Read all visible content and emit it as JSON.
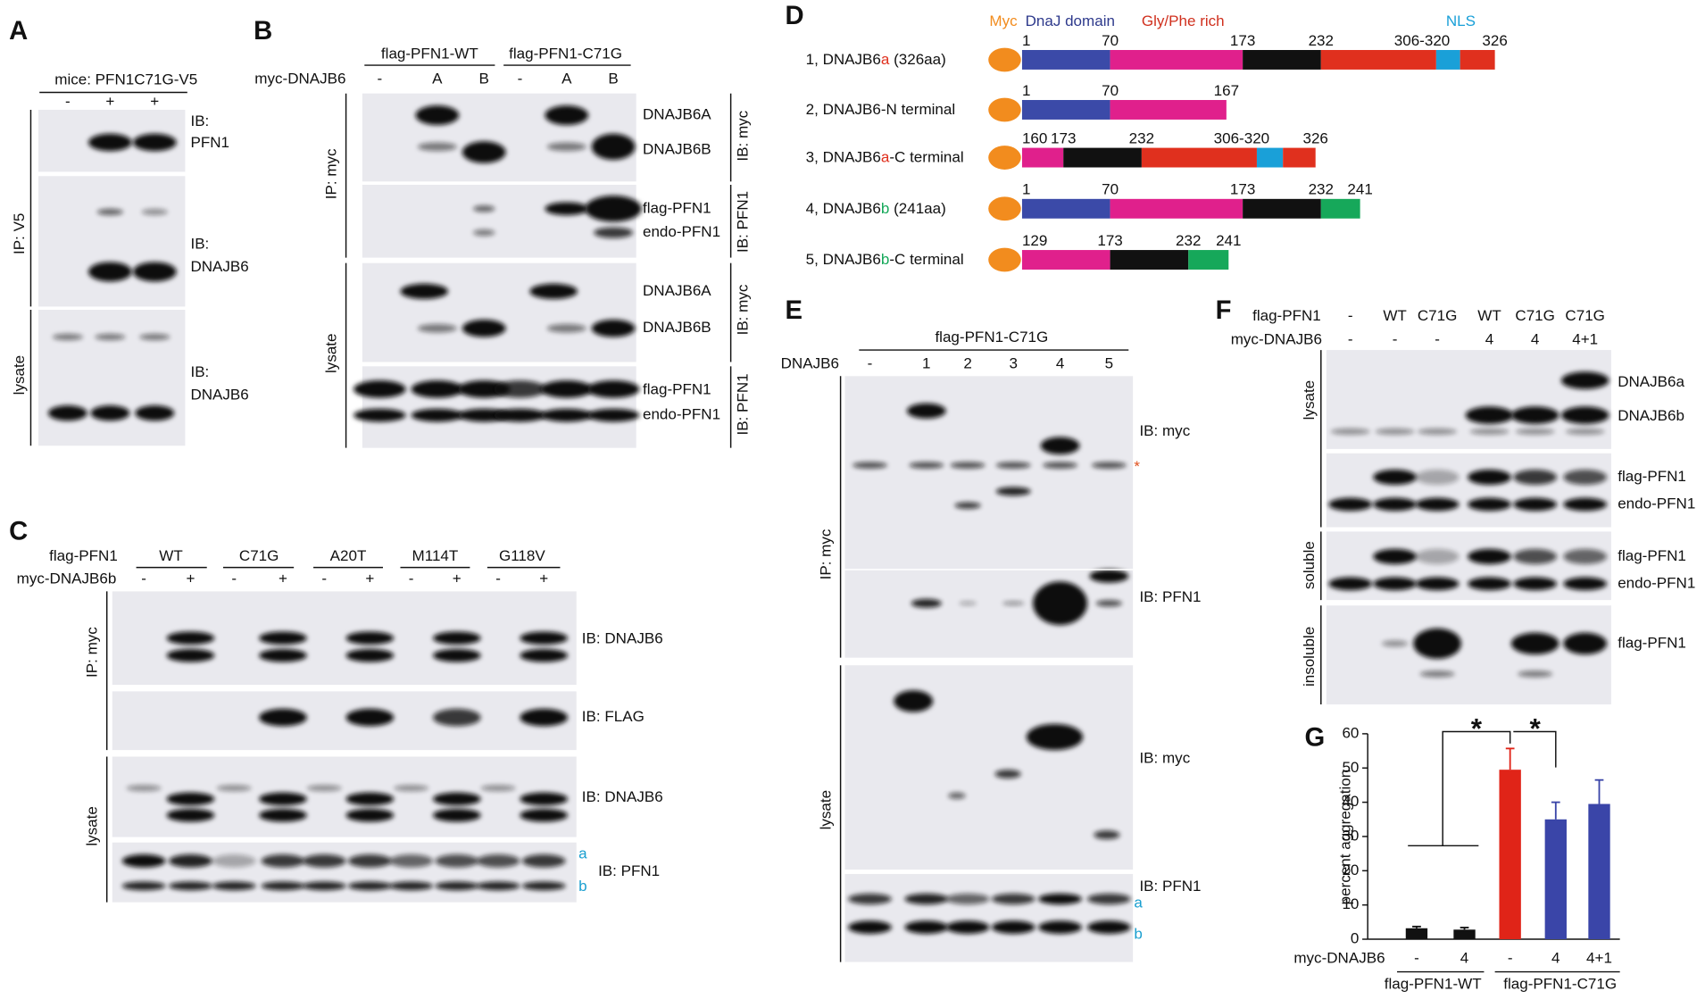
{
  "figure": {
    "panel_a": {
      "label": "A",
      "header": "mice: PFN1C71G-V5",
      "lanes": [
        "-",
        "+",
        "+"
      ],
      "blot_labels": [
        [
          "IB:",
          "PFN1"
        ],
        [
          "IB:",
          "DNAJB6"
        ],
        [
          "IB:",
          "DNAJB6"
        ]
      ],
      "side_labels": [
        "IP: V5",
        "lysate"
      ]
    },
    "panel_b": {
      "label": "B",
      "groups": [
        "flag-PFN1-WT",
        "flag-PFN1-C71G"
      ],
      "row_label": "myc-DNAJB6",
      "lanes": [
        "-",
        "A",
        "B",
        "-",
        "A",
        "B"
      ],
      "band_labels": [
        "DNAJB6A",
        "DNAJB6B",
        "flag-PFN1",
        "endo-PFN1",
        "DNAJB6A",
        "DNAJB6B",
        "flag-PFN1",
        "endo-PFN1"
      ],
      "ib_labels": [
        "IB: myc",
        "IB: PFN1",
        "IB: myc",
        "IB: PFN1"
      ],
      "side_labels": [
        "IP: myc",
        "lysate"
      ]
    },
    "panel_c": {
      "label": "C",
      "row_labels": [
        "flag-PFN1",
        "myc-DNAJB6b"
      ],
      "groups": [
        "WT",
        "C71G",
        "A20T",
        "M114T",
        "G118V"
      ],
      "lanes": [
        "-",
        "+",
        "-",
        "+",
        "-",
        "+",
        "-",
        "+",
        "-",
        "+"
      ],
      "ib_labels": [
        "IB: DNAJB6",
        "IB: FLAG",
        "IB: DNAJB6",
        "IB: PFN1"
      ],
      "band_markers": [
        "a",
        "b"
      ],
      "side_labels": [
        "IP: myc",
        "lysate"
      ]
    },
    "panel_d": {
      "label": "D",
      "legend": [
        "Myc",
        "DnaJ domain",
        "Gly/Phe rich",
        "NLS"
      ],
      "constructs": [
        {
          "name_parts": [
            "1, DNAJB6",
            "a",
            " (326aa)"
          ],
          "positions": [
            "1",
            "70",
            "173",
            "232",
            "306-320",
            "326"
          ]
        },
        {
          "name_parts": [
            "2, DNAJB6-N terminal"
          ],
          "positions": [
            "1",
            "70",
            "167"
          ]
        },
        {
          "name_parts": [
            "3, DNAJB6",
            "a",
            "-C terminal"
          ],
          "positions": [
            "160",
            "173",
            "232",
            "306-320",
            "326"
          ]
        },
        {
          "name_parts": [
            "4, DNAJB6",
            "b",
            " (241aa)"
          ],
          "positions": [
            "1",
            "70",
            "173",
            "232",
            "241"
          ]
        },
        {
          "name_parts": [
            "5, DNAJB6",
            "b",
            "-C terminal"
          ],
          "positions": [
            "129",
            "173",
            "232",
            "241"
          ]
        }
      ]
    },
    "panel_e": {
      "label": "E",
      "group": "flag-PFN1-C71G",
      "row_label": "DNAJB6",
      "lanes": [
        "-",
        "1",
        "2",
        "3",
        "4",
        "5"
      ],
      "ib_labels": [
        "IB: myc",
        "IB: PFN1",
        "IB: myc",
        "IB: PFN1"
      ],
      "nonspecific_marker": "*",
      "band_markers": [
        "a",
        "b"
      ],
      "side_labels": [
        "IP: myc",
        "lysate"
      ]
    },
    "panel_f": {
      "label": "F",
      "row_labels": [
        "flag-PFN1",
        "myc-DNAJB6"
      ],
      "flag_lanes": [
        "-",
        "WT",
        "C71G",
        "WT",
        "C71G",
        "C71G"
      ],
      "myc_lanes": [
        "-",
        "-",
        "-",
        "4",
        "4",
        "4+1"
      ],
      "band_labels": [
        "DNAJB6a",
        "DNAJB6b",
        "flag-PFN1",
        "endo-PFN1",
        "flag-PFN1",
        "endo-PFN1",
        "flag-PFN1"
      ],
      "side_labels": [
        "lysate",
        "soluble",
        "insoluble"
      ]
    }
  },
  "chart_data": {
    "type": "bar",
    "panel_label": "G",
    "ylabel": "percent aggregation",
    "x_row_label": "myc-DNAJB6",
    "categories": [
      "-",
      "4",
      "-",
      "4",
      "4+1"
    ],
    "group_labels": [
      "flag-PFN1-WT",
      "flag-PFN1-C71G"
    ],
    "values": [
      3.2,
      2.8,
      49.5,
      35,
      39.5
    ],
    "errors": [
      0.5,
      0.6,
      6.2,
      5,
      7
    ],
    "colors": [
      "#111111",
      "#111111",
      "#e02418",
      "#3a45a8",
      "#3a45a8"
    ],
    "ylim": [
      0,
      60
    ],
    "yticks": [
      0,
      10,
      20,
      30,
      40,
      50,
      60
    ],
    "annotations": [
      "*",
      "*"
    ]
  }
}
